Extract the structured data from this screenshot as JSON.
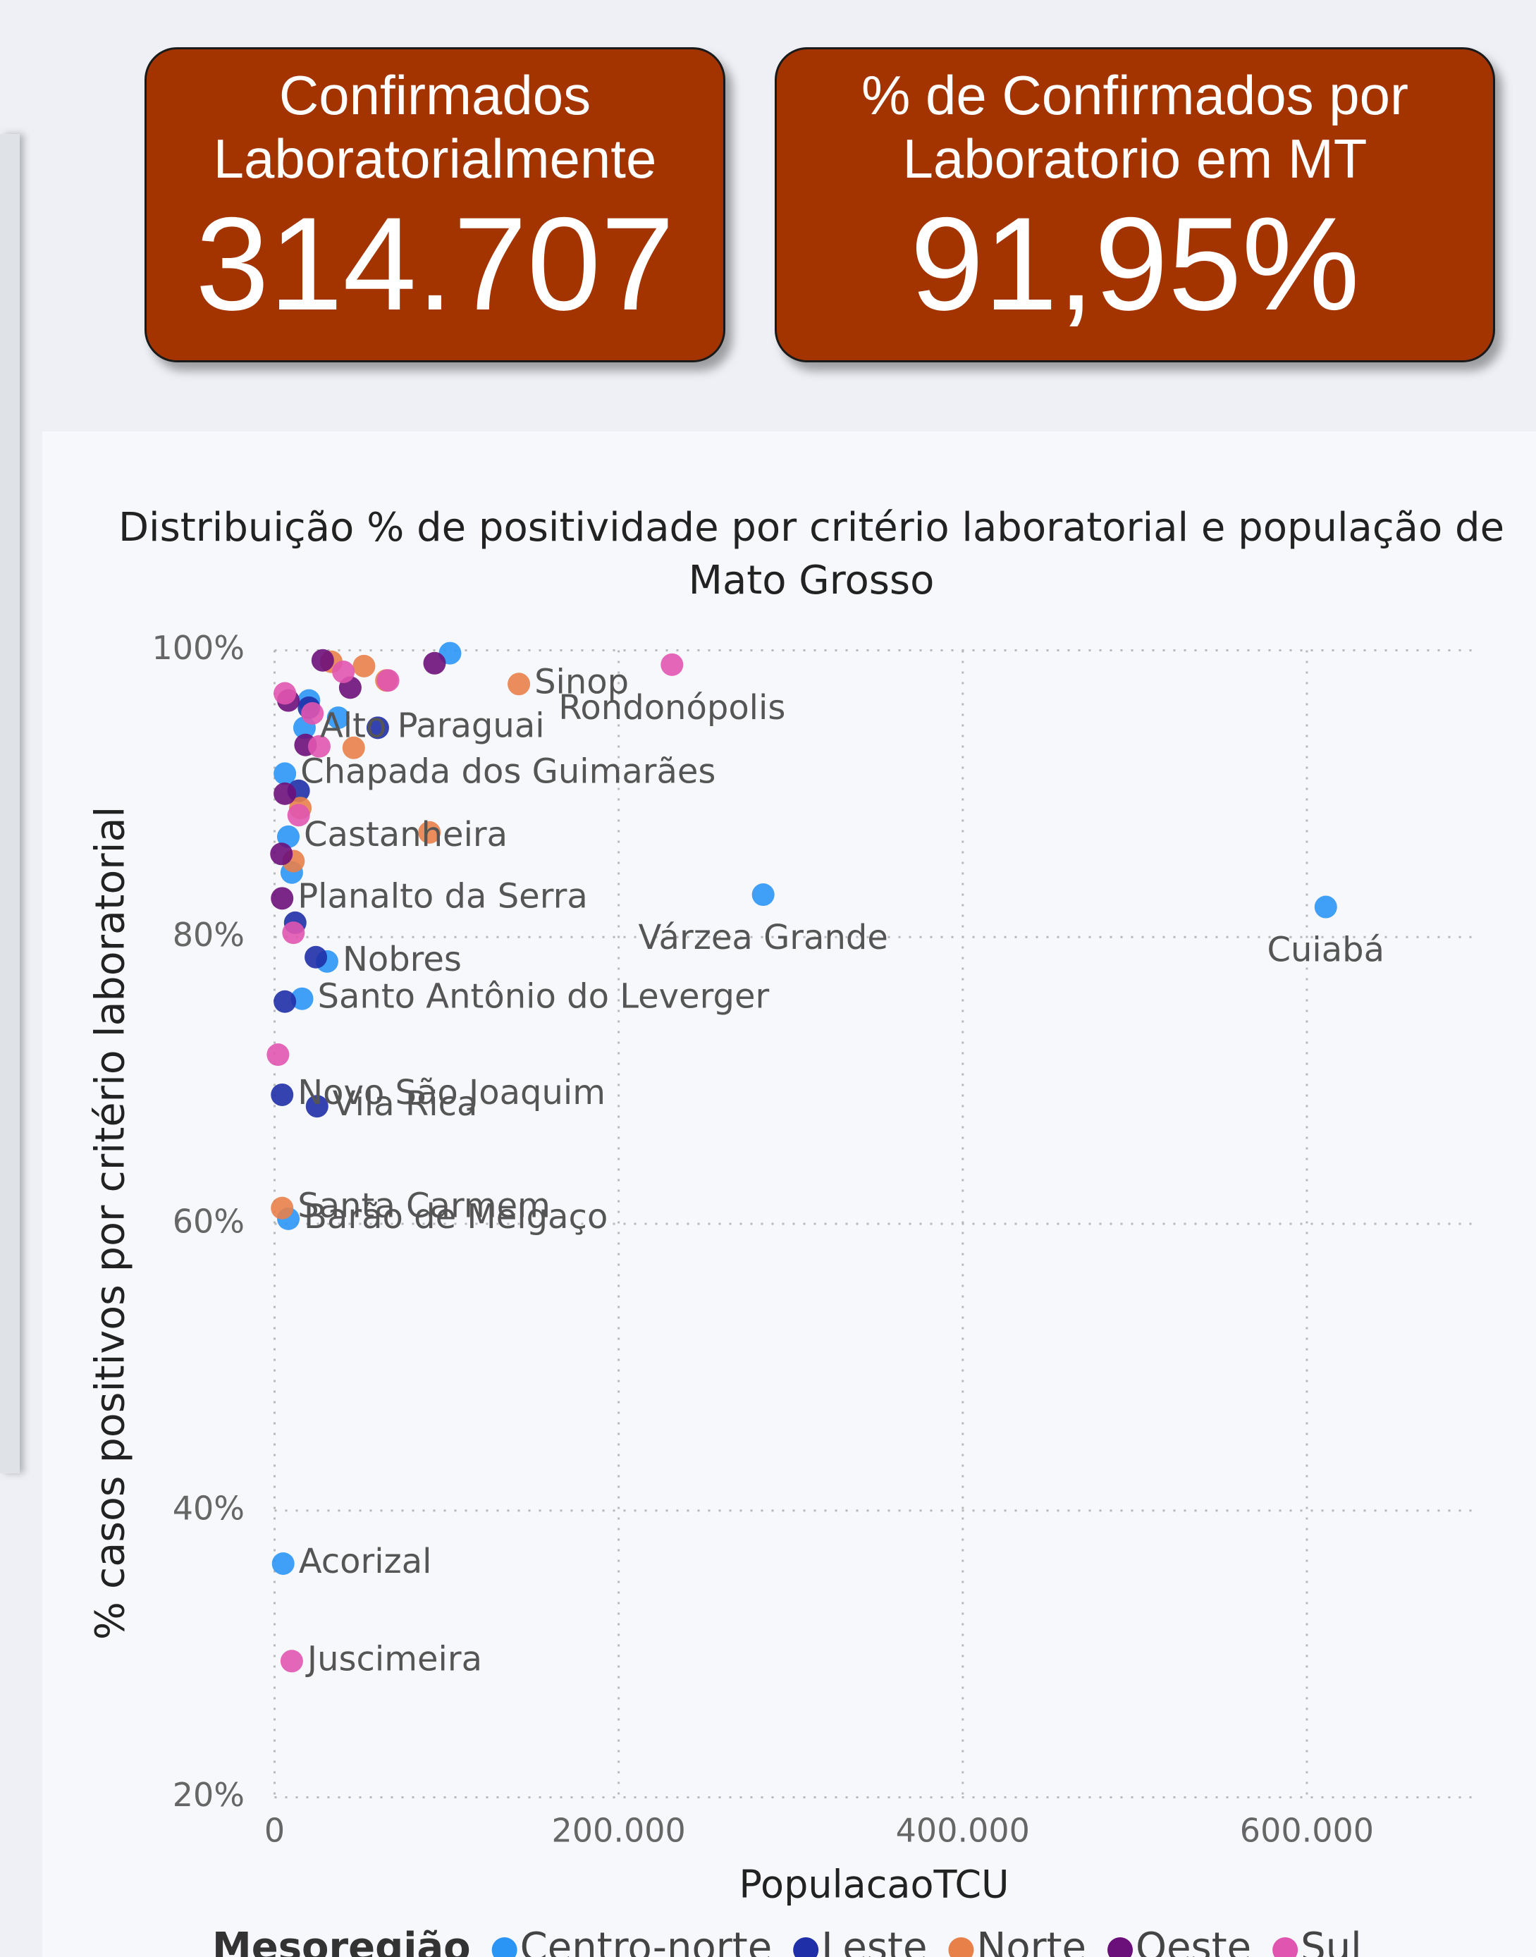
{
  "cards": [
    {
      "title": [
        "Confirmados",
        "Laboratorialmente"
      ],
      "value": "314.707"
    },
    {
      "title": [
        "% de Confirmados por",
        "Laboratorio em MT"
      ],
      "value": "91,95%"
    }
  ],
  "chart_data": {
    "type": "scatter",
    "title": [
      "Distribuição % de positividade por critério laboratorial e população de",
      "Mato Grosso"
    ],
    "x_label": "PopulacaoTCU",
    "y_label": "% casos positivos por critério laboratorial",
    "legend_title": "Mesoregião",
    "xlim": [
      0,
      700000
    ],
    "ylim": [
      20,
      100
    ],
    "xticks": [
      0,
      {
        "value": 200000,
        "label": "200.000"
      },
      {
        "value": 400000,
        "label": "400.000"
      },
      {
        "value": 600000,
        "label": "600.000"
      }
    ],
    "yticks": [
      {
        "value": 20,
        "label": "20%"
      },
      {
        "value": 40,
        "label": "40%"
      },
      {
        "value": 60,
        "label": "60%"
      },
      {
        "value": 80,
        "label": "80%"
      },
      {
        "value": 100,
        "label": "100%"
      }
    ],
    "grid": true,
    "series": [
      {
        "name": "Centro-norte",
        "color": "#2b95f5",
        "x": [
          17400,
          6000,
          8000,
          284000,
          611000,
          30500,
          16000,
          8000,
          5000,
          102000,
          37000,
          20000,
          10000
        ],
        "values": [
          94.6,
          91.4,
          87.0,
          82.96,
          82.1,
          78.3,
          75.7,
          60.35,
          36.3,
          99.8,
          95.3,
          96.5,
          84.5
        ],
        "labels": [
          "Alto Paraguai",
          "Chapada dos Guimarães",
          "Castanheira",
          "Várzea Grande",
          "Cuiabá",
          "Nobres",
          "Santo Antônio do Leverger",
          "Barão de Melgaço",
          "Acorizal",
          null,
          null,
          null,
          null
        ]
      },
      {
        "name": "Leste",
        "color": "#1f2fa8",
        "x": [
          4400,
          24700,
          60000,
          14000,
          24000,
          6000,
          20000,
          12000
        ],
        "values": [
          69.0,
          68.2,
          94.6,
          90.2,
          78.6,
          75.5,
          96.0,
          81.0
        ],
        "labels": [
          "Novo São Joaquim",
          "Vila Rica",
          null,
          null,
          null,
          null,
          null,
          null
        ]
      },
      {
        "name": "Norte",
        "color": "#e8804a",
        "x": [
          142000,
          4400,
          90000,
          46000,
          65000,
          52000,
          11000,
          15000,
          33000
        ],
        "values": [
          97.65,
          61.1,
          87.3,
          93.2,
          97.9,
          98.9,
          85.3,
          89.0,
          99.2
        ],
        "labels": [
          "Sinop",
          "Santa Carmem",
          null,
          null,
          null,
          null,
          null,
          null,
          null
        ]
      },
      {
        "name": "Oeste",
        "color": "#6b0f7a",
        "x": [
          4400,
          93000,
          44000,
          18000,
          6000,
          4000,
          28000,
          8000
        ],
        "values": [
          82.7,
          99.1,
          97.4,
          93.4,
          90.0,
          85.8,
          99.3,
          96.5
        ],
        "labels": [
          "Planalto da Serra",
          null,
          null,
          null,
          null,
          null,
          null,
          null
        ]
      },
      {
        "name": "Sul",
        "color": "#e055b0",
        "x": [
          231000,
          10000,
          2000,
          11000,
          66000,
          26000,
          14000,
          40000,
          22000,
          6000
        ],
        "values": [
          99.0,
          29.5,
          71.8,
          80.3,
          97.9,
          93.3,
          88.5,
          98.5,
          95.6,
          97.0
        ],
        "labels": [
          "Rondonópolis",
          "Juscimeira",
          null,
          null,
          null,
          null,
          null,
          null,
          null,
          null
        ]
      }
    ]
  }
}
